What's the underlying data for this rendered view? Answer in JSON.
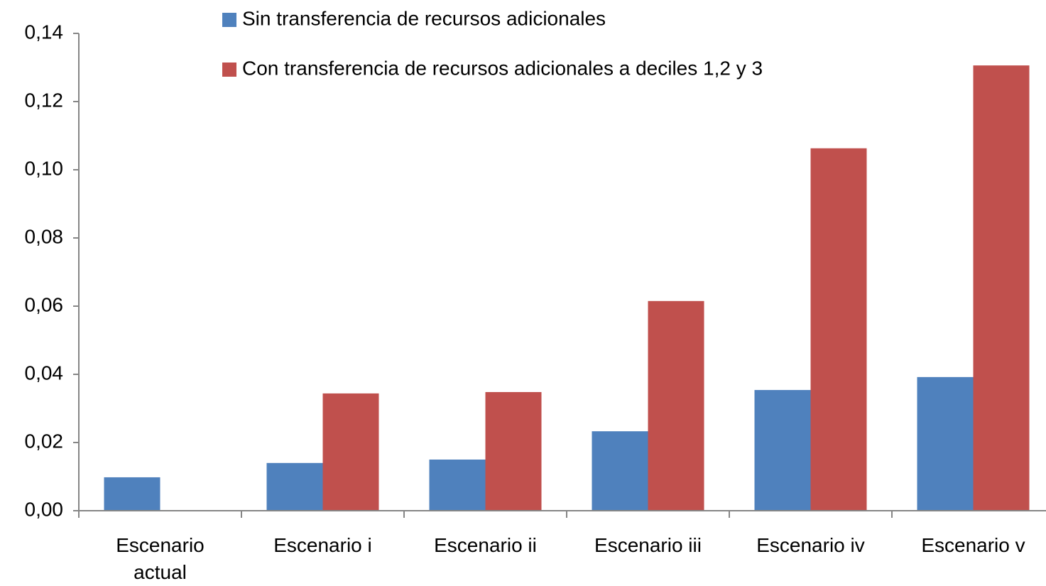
{
  "chart_data": {
    "type": "bar",
    "categories": [
      "Escenario actual",
      "Escenario i",
      "Escenario ii",
      "Escenario iii",
      "Escenario iv",
      "Escenario v"
    ],
    "series": [
      {
        "name": "Sin transferencia de recursos adicionales",
        "color": "#4f81bd",
        "values": [
          0.0098,
          0.014,
          0.015,
          0.0233,
          0.0354,
          0.0392
        ]
      },
      {
        "name": "Con transferencia de recursos adicionales a deciles 1,2 y 3",
        "color": "#c0504d",
        "values": [
          null,
          0.0344,
          0.0348,
          0.0615,
          0.1063,
          0.1306
        ]
      }
    ],
    "ylim": [
      0,
      0.14
    ],
    "yticks": [
      {
        "value": 0,
        "label": "0,00"
      },
      {
        "value": 0.02,
        "label": "0,02"
      },
      {
        "value": 0.04,
        "label": "0,04"
      },
      {
        "value": 0.06,
        "label": "0,06"
      },
      {
        "value": 0.08,
        "label": "0,08"
      },
      {
        "value": 0.1,
        "label": "0,10"
      },
      {
        "value": 0.12,
        "label": "0,12"
      },
      {
        "value": 0.14,
        "label": "0,14"
      }
    ],
    "grid": false,
    "legend": "top"
  }
}
